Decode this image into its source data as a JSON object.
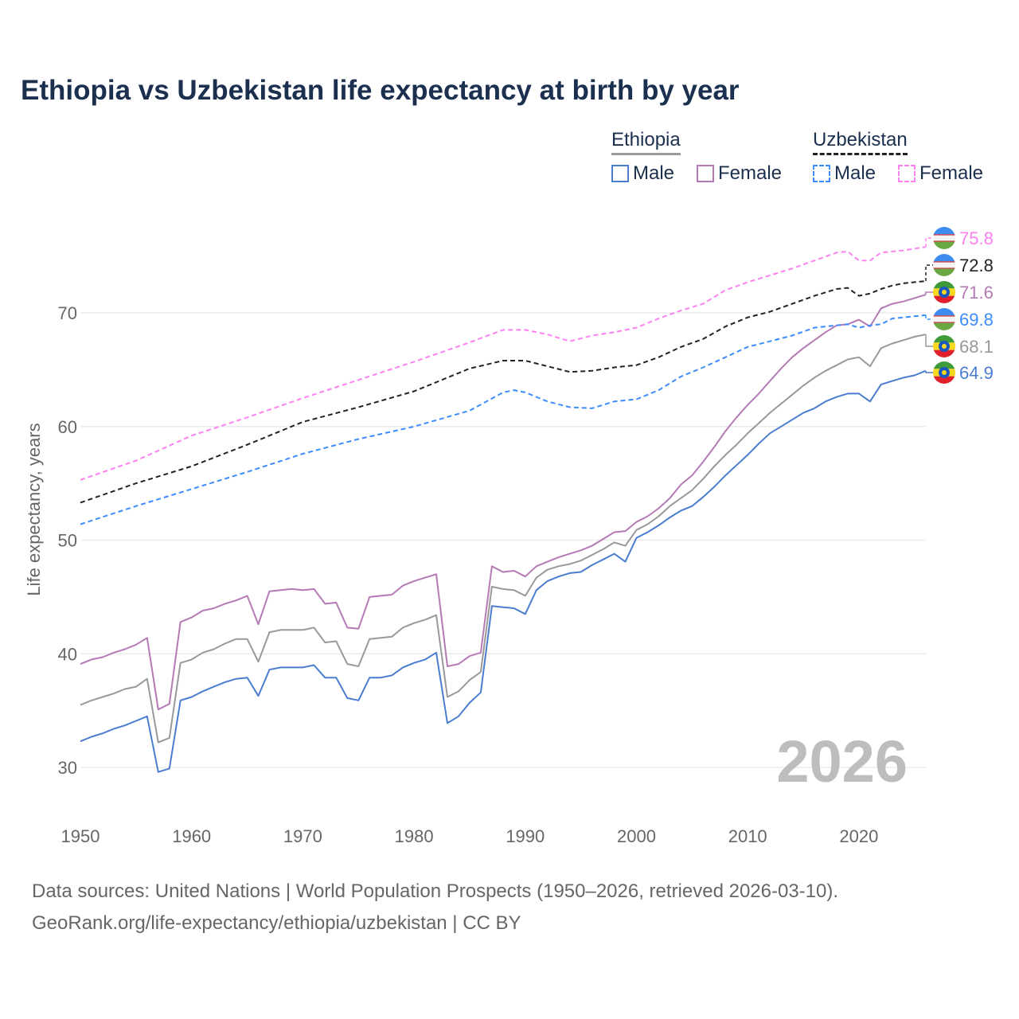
{
  "title": "Ethiopia vs Uzbekistan life expectancy at birth by year",
  "legend": {
    "groups": [
      {
        "name": "Ethiopia",
        "items": [
          "Male",
          "Female"
        ]
      },
      {
        "name": "Uzbekistan",
        "items": [
          "Male",
          "Female"
        ]
      }
    ]
  },
  "watermark_year": "2026",
  "footer": {
    "line1": "Data sources: United Nations | World Population Prospects (1950–2026, retrieved 2026-03-10).",
    "line2": "GeoRank.org/life-expectancy/ethiopia/uzbekistan | CC BY"
  },
  "chart_data": {
    "type": "line",
    "title": "Ethiopia vs Uzbekistan life expectancy at birth by year",
    "xlabel": "",
    "ylabel": "Life expectancy, years",
    "xlim": [
      1950,
      2026
    ],
    "ylim": [
      25,
      80
    ],
    "xticks": [
      "1950",
      "1960",
      "1970",
      "1980",
      "1990",
      "2000",
      "2010",
      "2020"
    ],
    "yticks": [
      "30",
      "40",
      "50",
      "60",
      "70"
    ],
    "grid": true,
    "legend_position": "top-right",
    "series": [
      {
        "name": "Uzbekistan Female",
        "country": "Uzbekistan",
        "color": "#ff80f2",
        "dash": true,
        "end_label": "75.8",
        "x": [
          1950,
          1955,
          1960,
          1965,
          1970,
          1975,
          1980,
          1985,
          1988,
          1990,
          1992,
          1994,
          1996,
          1998,
          2000,
          2002,
          2004,
          2006,
          2008,
          2010,
          2012,
          2014,
          2016,
          2018,
          2019,
          2020,
          2021,
          2022,
          2024,
          2026
        ],
        "y": [
          55.3,
          57.0,
          59.2,
          60.8,
          62.5,
          64.1,
          65.7,
          67.4,
          68.5,
          68.5,
          68.1,
          67.5,
          68.0,
          68.3,
          68.7,
          69.5,
          70.2,
          70.8,
          72.0,
          72.7,
          73.3,
          73.9,
          74.6,
          75.3,
          75.4,
          74.6,
          74.6,
          75.3,
          75.5,
          75.8
        ]
      },
      {
        "name": "Uzbekistan Total",
        "country": "Uzbekistan",
        "color": "#222222",
        "dash": true,
        "end_label": "72.8",
        "x": [
          1950,
          1955,
          1960,
          1965,
          1970,
          1975,
          1980,
          1985,
          1988,
          1990,
          1992,
          1994,
          1996,
          1998,
          2000,
          2002,
          2004,
          2006,
          2008,
          2010,
          2012,
          2014,
          2016,
          2018,
          2019,
          2020,
          2021,
          2022,
          2023,
          2024,
          2026
        ],
        "y": [
          53.3,
          55.0,
          56.5,
          58.4,
          60.4,
          61.7,
          63.1,
          65.1,
          65.8,
          65.8,
          65.3,
          64.8,
          64.9,
          65.2,
          65.4,
          66.1,
          67.0,
          67.7,
          68.8,
          69.6,
          70.1,
          70.8,
          71.5,
          72.1,
          72.2,
          71.5,
          71.7,
          72.1,
          72.4,
          72.6,
          72.8
        ]
      },
      {
        "name": "Ethiopia Female",
        "country": "Ethiopia",
        "color": "#b57ab5",
        "dash": false,
        "end_label": "71.6",
        "x": [
          1950,
          1951,
          1952,
          1953,
          1954,
          1955,
          1956,
          1957,
          1958,
          1959,
          1960,
          1961,
          1962,
          1963,
          1964,
          1965,
          1966,
          1967,
          1968,
          1969,
          1970,
          1971,
          1972,
          1973,
          1974,
          1975,
          1976,
          1977,
          1978,
          1979,
          1980,
          1981,
          1982,
          1983,
          1984,
          1985,
          1986,
          1987,
          1988,
          1989,
          1990,
          1991,
          1992,
          1993,
          1994,
          1995,
          1996,
          1997,
          1998,
          1999,
          2000,
          2001,
          2002,
          2003,
          2004,
          2005,
          2006,
          2007,
          2008,
          2009,
          2010,
          2011,
          2012,
          2013,
          2014,
          2015,
          2016,
          2017,
          2018,
          2019,
          2020,
          2021,
          2022,
          2023,
          2024,
          2025,
          2026
        ],
        "y": [
          39.1,
          39.5,
          39.7,
          40.1,
          40.4,
          40.8,
          41.4,
          35.1,
          35.6,
          42.8,
          43.2,
          43.8,
          44.0,
          44.4,
          44.7,
          45.1,
          42.6,
          45.5,
          45.6,
          45.7,
          45.6,
          45.7,
          44.4,
          44.5,
          42.3,
          42.2,
          45.0,
          45.1,
          45.2,
          46.0,
          46.4,
          46.7,
          47.0,
          38.9,
          39.1,
          39.8,
          40.1,
          47.7,
          47.2,
          47.3,
          46.8,
          47.7,
          48.1,
          48.5,
          48.8,
          49.1,
          49.5,
          50.1,
          50.7,
          50.8,
          51.6,
          52.1,
          52.8,
          53.7,
          54.9,
          55.7,
          56.9,
          58.2,
          59.6,
          60.8,
          61.9,
          62.9,
          64.0,
          65.1,
          66.1,
          66.9,
          67.6,
          68.3,
          68.9,
          69.0,
          69.4,
          68.8,
          70.4,
          70.8,
          71.0,
          71.3,
          71.6
        ]
      },
      {
        "name": "Uzbekistan Male",
        "country": "Uzbekistan",
        "color": "#3d8cff",
        "dash": true,
        "end_label": "69.8",
        "x": [
          1950,
          1955,
          1960,
          1965,
          1970,
          1975,
          1980,
          1985,
          1988,
          1989,
          1990,
          1992,
          1994,
          1996,
          1998,
          2000,
          2002,
          2004,
          2006,
          2008,
          2010,
          2012,
          2014,
          2016,
          2018,
          2019,
          2020,
          2021,
          2022,
          2023,
          2024,
          2026
        ],
        "y": [
          51.4,
          53.0,
          54.5,
          56.0,
          57.6,
          58.9,
          60.0,
          61.4,
          63.0,
          63.2,
          63.0,
          62.2,
          61.7,
          61.6,
          62.2,
          62.4,
          63.2,
          64.4,
          65.2,
          66.1,
          67.0,
          67.5,
          68.0,
          68.7,
          68.9,
          69.0,
          68.7,
          68.9,
          69.0,
          69.5,
          69.6,
          69.8
        ]
      },
      {
        "name": "Ethiopia Total",
        "country": "Ethiopia",
        "color": "#999999",
        "dash": false,
        "end_label": "68.1",
        "x": [
          1950,
          1951,
          1952,
          1953,
          1954,
          1955,
          1956,
          1957,
          1958,
          1959,
          1960,
          1961,
          1962,
          1963,
          1964,
          1965,
          1966,
          1967,
          1968,
          1969,
          1970,
          1971,
          1972,
          1973,
          1974,
          1975,
          1976,
          1977,
          1978,
          1979,
          1980,
          1981,
          1982,
          1983,
          1984,
          1985,
          1986,
          1987,
          1988,
          1989,
          1990,
          1991,
          1992,
          1993,
          1994,
          1995,
          1996,
          1997,
          1998,
          1999,
          2000,
          2001,
          2002,
          2003,
          2004,
          2005,
          2006,
          2007,
          2008,
          2009,
          2010,
          2011,
          2012,
          2013,
          2014,
          2015,
          2016,
          2017,
          2018,
          2019,
          2020,
          2021,
          2022,
          2023,
          2024,
          2025,
          2026
        ],
        "y": [
          35.5,
          35.9,
          36.2,
          36.5,
          36.9,
          37.1,
          37.8,
          32.2,
          32.6,
          39.2,
          39.5,
          40.1,
          40.4,
          40.9,
          41.3,
          41.3,
          39.3,
          41.9,
          42.1,
          42.1,
          42.1,
          42.3,
          41.0,
          41.1,
          39.1,
          38.9,
          41.3,
          41.4,
          41.5,
          42.3,
          42.7,
          43.0,
          43.4,
          36.2,
          36.7,
          37.7,
          38.4,
          45.9,
          45.7,
          45.6,
          45.1,
          46.7,
          47.4,
          47.7,
          47.9,
          48.2,
          48.7,
          49.2,
          49.8,
          49.5,
          50.9,
          51.4,
          52.1,
          53.0,
          53.7,
          54.4,
          55.4,
          56.5,
          57.5,
          58.4,
          59.4,
          60.3,
          61.2,
          62.0,
          62.8,
          63.6,
          64.3,
          64.9,
          65.4,
          65.9,
          66.1,
          65.3,
          66.9,
          67.3,
          67.6,
          67.9,
          68.1
        ]
      },
      {
        "name": "Ethiopia Male",
        "country": "Ethiopia",
        "color": "#4a7dd0",
        "dash": false,
        "end_label": "64.9",
        "x": [
          1950,
          1951,
          1952,
          1953,
          1954,
          1955,
          1956,
          1957,
          1958,
          1959,
          1960,
          1961,
          1962,
          1963,
          1964,
          1965,
          1966,
          1967,
          1968,
          1969,
          1970,
          1971,
          1972,
          1973,
          1974,
          1975,
          1976,
          1977,
          1978,
          1979,
          1980,
          1981,
          1982,
          1983,
          1984,
          1985,
          1986,
          1987,
          1988,
          1989,
          1990,
          1991,
          1992,
          1993,
          1994,
          1995,
          1996,
          1997,
          1998,
          1999,
          2000,
          2001,
          2002,
          2003,
          2004,
          2005,
          2006,
          2007,
          2008,
          2009,
          2010,
          2011,
          2012,
          2013,
          2014,
          2015,
          2016,
          2017,
          2018,
          2019,
          2020,
          2021,
          2022,
          2023,
          2024,
          2025,
          2026
        ],
        "y": [
          32.3,
          32.7,
          33.0,
          33.4,
          33.7,
          34.1,
          34.5,
          29.6,
          29.9,
          35.9,
          36.2,
          36.7,
          37.1,
          37.5,
          37.8,
          37.9,
          36.3,
          38.6,
          38.8,
          38.8,
          38.8,
          39.0,
          37.9,
          37.9,
          36.1,
          35.9,
          37.9,
          37.9,
          38.1,
          38.8,
          39.2,
          39.5,
          40.1,
          33.9,
          34.5,
          35.7,
          36.6,
          44.2,
          44.1,
          44.0,
          43.5,
          45.6,
          46.4,
          46.8,
          47.1,
          47.2,
          47.8,
          48.3,
          48.8,
          48.1,
          50.2,
          50.7,
          51.3,
          52.0,
          52.6,
          53.0,
          53.8,
          54.7,
          55.7,
          56.6,
          57.5,
          58.5,
          59.4,
          60.0,
          60.6,
          61.2,
          61.6,
          62.2,
          62.6,
          62.9,
          62.9,
          62.2,
          63.7,
          64.0,
          64.3,
          64.5,
          64.9
        ]
      }
    ]
  }
}
